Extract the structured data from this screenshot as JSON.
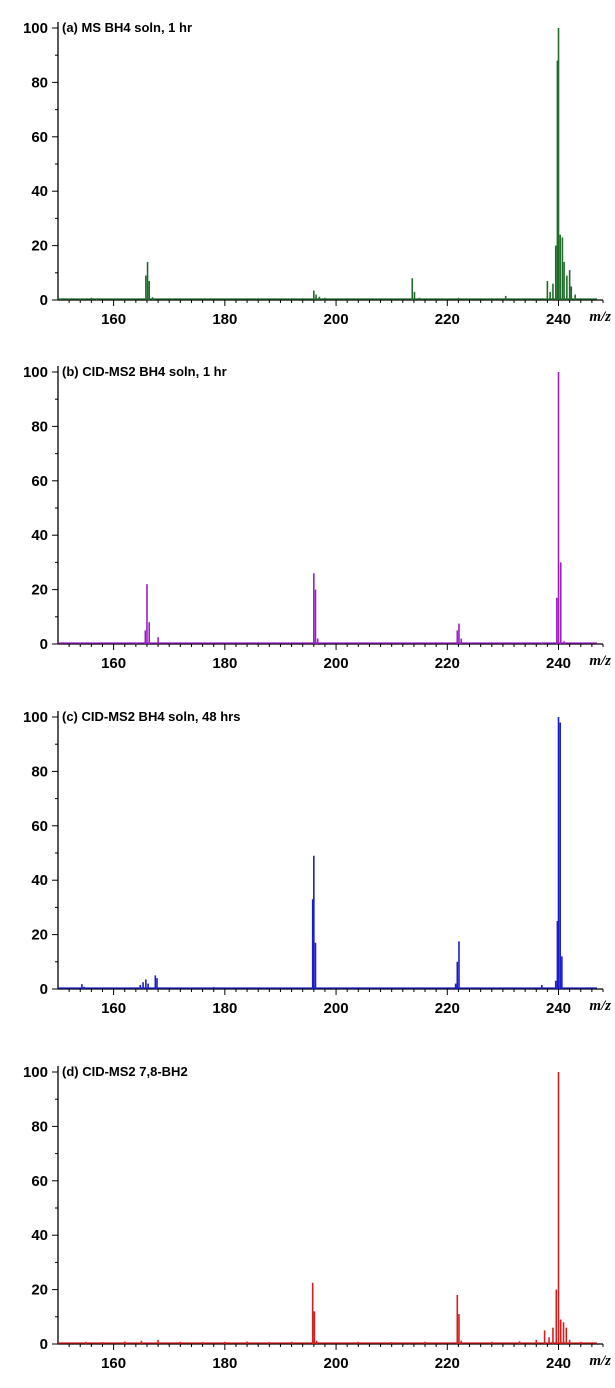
{
  "chart_data": [
    {
      "type": "line",
      "title": "(a) MS BH4 soln, 1 hr",
      "xlabel": "m/z",
      "ylabel": "",
      "xlim": [
        150,
        248
      ],
      "ylim": [
        0,
        100
      ],
      "xticks": [
        "160",
        "180",
        "200",
        "220",
        "240"
      ],
      "yticks": [
        "0",
        "20",
        "40",
        "60",
        "80",
        "100"
      ],
      "color": "#1e6b2a",
      "series": [
        {
          "x": [
            150.5,
            152,
            154,
            156,
            157,
            165.8,
            166.1,
            166.4,
            167,
            196,
            196.4,
            197,
            198,
            213.7,
            214.1,
            215,
            222,
            230.5,
            238,
            238.5,
            239,
            239.5,
            239.8,
            240.0,
            240.3,
            240.7,
            241.0,
            241.5,
            242.0,
            242.3,
            243.0
          ],
          "y": [
            0.5,
            0.4,
            0.5,
            0.8,
            0.6,
            9,
            14,
            7,
            1,
            3.5,
            2,
            1.2,
            0.8,
            8,
            3,
            0.8,
            0.8,
            1.5,
            7,
            3,
            6,
            20,
            88,
            100,
            24,
            23,
            14,
            9,
            11,
            5,
            2
          ]
        }
      ]
    },
    {
      "type": "line",
      "title": "(b) CID-MS2 BH4 soln, 1 hr",
      "xlabel": "m/z",
      "ylabel": "",
      "xlim": [
        150,
        248
      ],
      "ylim": [
        0,
        100
      ],
      "xticks": [
        "160",
        "180",
        "200",
        "220",
        "240"
      ],
      "yticks": [
        "0",
        "20",
        "40",
        "60",
        "80",
        "100"
      ],
      "color": "#9b1ec8",
      "series": [
        {
          "x": [
            154,
            164,
            165.7,
            166.0,
            166.4,
            168,
            196.0,
            196.3,
            196.7,
            204,
            221.8,
            222.1,
            222.5,
            237,
            239.7,
            240.0,
            240.4,
            241
          ],
          "y": [
            0.5,
            0.5,
            5,
            22,
            8,
            2.5,
            26,
            20,
            2,
            0.4,
            5,
            7.5,
            2,
            0.5,
            17,
            100,
            30,
            1
          ]
        }
      ]
    },
    {
      "type": "line",
      "title": "(c) CID-MS2 BH4 soln, 48 hrs",
      "xlabel": "m/z",
      "ylabel": "",
      "xlim": [
        150,
        248
      ],
      "ylim": [
        0,
        100
      ],
      "xticks": [
        "160",
        "180",
        "200",
        "220",
        "240"
      ],
      "yticks": [
        "0",
        "20",
        "40",
        "60",
        "80",
        "100"
      ],
      "color": "#1c1ccc",
      "series": [
        {
          "x": [
            154.3,
            154.7,
            164.8,
            165.3,
            165.8,
            166.2,
            167.5,
            167.8,
            176,
            178,
            195.8,
            196.0,
            196.3,
            203,
            221.5,
            221.8,
            222.1,
            237,
            239.5,
            239.8,
            240.0,
            240.3,
            240.6
          ],
          "y": [
            1.8,
            0.8,
            1.5,
            2.5,
            3.5,
            2,
            5,
            4,
            0.5,
            0.7,
            33,
            49,
            17,
            0.6,
            2,
            10,
            17.5,
            1.5,
            3,
            25,
            100,
            98,
            12
          ]
        }
      ]
    },
    {
      "type": "line",
      "title": "(d) CID-MS2 7,8-BH2",
      "xlabel": "m/z",
      "ylabel": "",
      "xlim": [
        150,
        248
      ],
      "ylim": [
        0,
        100
      ],
      "xticks": [
        "160",
        "180",
        "200",
        "220",
        "240"
      ],
      "yticks": [
        "0",
        "20",
        "40",
        "60",
        "80",
        "100"
      ],
      "color": "#d41e1e",
      "series": [
        {
          "x": [
            155,
            158,
            162,
            165,
            168,
            172,
            176,
            180,
            184,
            188,
            192,
            195.8,
            196.1,
            196.5,
            204,
            210,
            216,
            221.8,
            222.1,
            222.5,
            228,
            233,
            236,
            237.5,
            238.3,
            239,
            239.6,
            240.0,
            240.4,
            240.9,
            241.4,
            242,
            244
          ],
          "y": [
            0.8,
            0.7,
            0.9,
            1.2,
            1.5,
            0.8,
            0.7,
            0.8,
            0.9,
            0.7,
            0.8,
            22.5,
            12,
            1.2,
            0.8,
            0.7,
            0.8,
            18,
            11,
            1.2,
            0.8,
            1,
            1.5,
            5,
            2.5,
            6,
            20,
            100,
            9,
            8,
            6,
            1.5,
            0.8
          ]
        }
      ]
    }
  ]
}
